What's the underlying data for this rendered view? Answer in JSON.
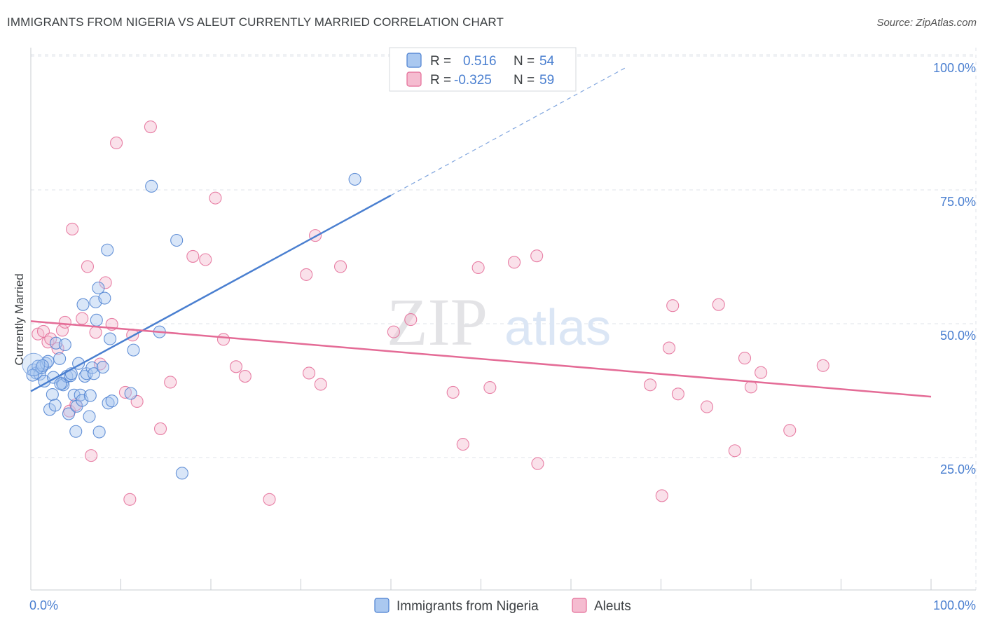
{
  "title": "IMMIGRANTS FROM NIGERIA VS ALEUT CURRENTLY MARRIED CORRELATION CHART",
  "source": "Source: ZipAtlas.com",
  "watermark": {
    "zip": "ZIP",
    "atlas": "atlas"
  },
  "colors": {
    "blue": "#4a7fd0",
    "blue_fill": "#aac8f0",
    "pink": "#e46b96",
    "pink_fill": "#f5bcd0",
    "grid": "#dfe3e8",
    "text": "#3c4043"
  },
  "legend": {
    "rows": [
      {
        "r_label": "R =",
        "r_value": "0.516",
        "n_label": "N =",
        "n_value": "54"
      },
      {
        "r_label": "R =",
        "r_value": "-0.325",
        "n_label": "N =",
        "n_value": "59"
      }
    ]
  },
  "bottom_legend": [
    "Immigrants from Nigeria",
    "Aleuts"
  ],
  "chart_data": {
    "type": "scatter",
    "title": "IMMIGRANTS FROM NIGERIA VS ALEUT CURRENTLY MARRIED CORRELATION CHART",
    "xlabel": "",
    "ylabel": "Currently Married",
    "xlim": [
      0,
      100
    ],
    "ylim": [
      0,
      105
    ],
    "x_tick_labels": [
      "0.0%",
      "100.0%"
    ],
    "y_ticks": [
      25,
      50,
      75,
      100
    ],
    "y_tick_labels": [
      "25.0%",
      "50.0%",
      "75.0%",
      "100.0%"
    ],
    "grid": true,
    "legend_position": "top-center",
    "series": [
      {
        "name": "Immigrants from Nigeria",
        "r": 0.516,
        "n": 54,
        "trend": {
          "x0": 0,
          "y0": 39.6,
          "x1": 40,
          "y1": 76.2,
          "dashed_to_x": 66
        },
        "points": [
          [
            0.3,
            43.6
          ],
          [
            0.6,
            43.0
          ],
          [
            0.8,
            44.3
          ],
          [
            1.0,
            42.8
          ],
          [
            1.2,
            44.0
          ],
          [
            1.5,
            41.5
          ],
          [
            1.7,
            44.8
          ],
          [
            1.9,
            45.2
          ],
          [
            2.1,
            36.2
          ],
          [
            2.4,
            39.0
          ],
          [
            2.7,
            37.0
          ],
          [
            2.8,
            48.6
          ],
          [
            3.2,
            45.7
          ],
          [
            3.5,
            41.1
          ],
          [
            3.6,
            40.8
          ],
          [
            3.8,
            48.3
          ],
          [
            4.0,
            42.4
          ],
          [
            4.2,
            35.4
          ],
          [
            4.4,
            42.5
          ],
          [
            4.5,
            42.9
          ],
          [
            4.8,
            38.9
          ],
          [
            5.0,
            32.1
          ],
          [
            5.1,
            36.8
          ],
          [
            5.3,
            44.8
          ],
          [
            5.5,
            38.9
          ],
          [
            5.7,
            37.9
          ],
          [
            5.8,
            55.8
          ],
          [
            6.0,
            42.4
          ],
          [
            6.2,
            42.9
          ],
          [
            6.5,
            34.9
          ],
          [
            6.6,
            38.8
          ],
          [
            6.8,
            44.0
          ],
          [
            7.0,
            42.9
          ],
          [
            7.2,
            56.3
          ],
          [
            7.3,
            52.9
          ],
          [
            7.5,
            58.9
          ],
          [
            7.6,
            32.0
          ],
          [
            8.0,
            44.1
          ],
          [
            8.2,
            57.0
          ],
          [
            8.5,
            66.0
          ],
          [
            8.6,
            37.4
          ],
          [
            8.8,
            49.4
          ],
          [
            9.0,
            37.8
          ],
          [
            11.1,
            39.2
          ],
          [
            11.4,
            47.3
          ],
          [
            13.4,
            77.9
          ],
          [
            14.3,
            50.7
          ],
          [
            16.2,
            67.8
          ],
          [
            16.8,
            24.3
          ],
          [
            36.0,
            79.2
          ],
          [
            0.2,
            42.6
          ],
          [
            1.3,
            44.4
          ],
          [
            2.5,
            42.2
          ],
          [
            3.3,
            41.0
          ]
        ]
      },
      {
        "name": "Aleuts",
        "r": -0.325,
        "n": 59,
        "trend": {
          "x0": 0,
          "y0": 52.7,
          "x1": 100,
          "y1": 38.6
        },
        "points": [
          [
            0.8,
            50.3
          ],
          [
            1.4,
            50.8
          ],
          [
            1.9,
            48.8
          ],
          [
            2.2,
            49.4
          ],
          [
            3.0,
            47.6
          ],
          [
            3.5,
            51.0
          ],
          [
            3.8,
            52.5
          ],
          [
            4.3,
            35.9
          ],
          [
            4.6,
            69.9
          ],
          [
            5.0,
            37.1
          ],
          [
            5.7,
            53.2
          ],
          [
            6.3,
            62.9
          ],
          [
            6.7,
            27.6
          ],
          [
            7.2,
            50.6
          ],
          [
            7.7,
            44.7
          ],
          [
            8.3,
            59.9
          ],
          [
            9.0,
            52.1
          ],
          [
            9.5,
            86.0
          ],
          [
            10.5,
            39.4
          ],
          [
            11.0,
            19.4
          ],
          [
            11.3,
            50.1
          ],
          [
            11.8,
            37.7
          ],
          [
            13.3,
            89.0
          ],
          [
            14.4,
            32.6
          ],
          [
            15.5,
            41.3
          ],
          [
            18.0,
            64.8
          ],
          [
            19.4,
            64.2
          ],
          [
            20.5,
            75.7
          ],
          [
            21.4,
            49.3
          ],
          [
            22.8,
            44.2
          ],
          [
            23.8,
            42.4
          ],
          [
            26.5,
            19.4
          ],
          [
            30.6,
            61.4
          ],
          [
            30.9,
            43.0
          ],
          [
            31.6,
            68.7
          ],
          [
            32.2,
            40.9
          ],
          [
            34.4,
            62.9
          ],
          [
            40.3,
            50.7
          ],
          [
            42.2,
            53.0
          ],
          [
            46.9,
            39.4
          ],
          [
            48.0,
            29.7
          ],
          [
            49.7,
            62.7
          ],
          [
            51.0,
            40.3
          ],
          [
            53.7,
            63.7
          ],
          [
            56.2,
            64.9
          ],
          [
            56.3,
            26.1
          ],
          [
            68.8,
            40.8
          ],
          [
            70.1,
            20.1
          ],
          [
            70.9,
            47.7
          ],
          [
            71.3,
            55.6
          ],
          [
            71.9,
            39.1
          ],
          [
            75.1,
            36.7
          ],
          [
            76.4,
            55.8
          ],
          [
            78.2,
            28.5
          ],
          [
            79.3,
            45.8
          ],
          [
            80.0,
            40.4
          ],
          [
            81.1,
            43.1
          ],
          [
            84.3,
            32.3
          ],
          [
            88.0,
            44.4
          ]
        ]
      }
    ]
  }
}
